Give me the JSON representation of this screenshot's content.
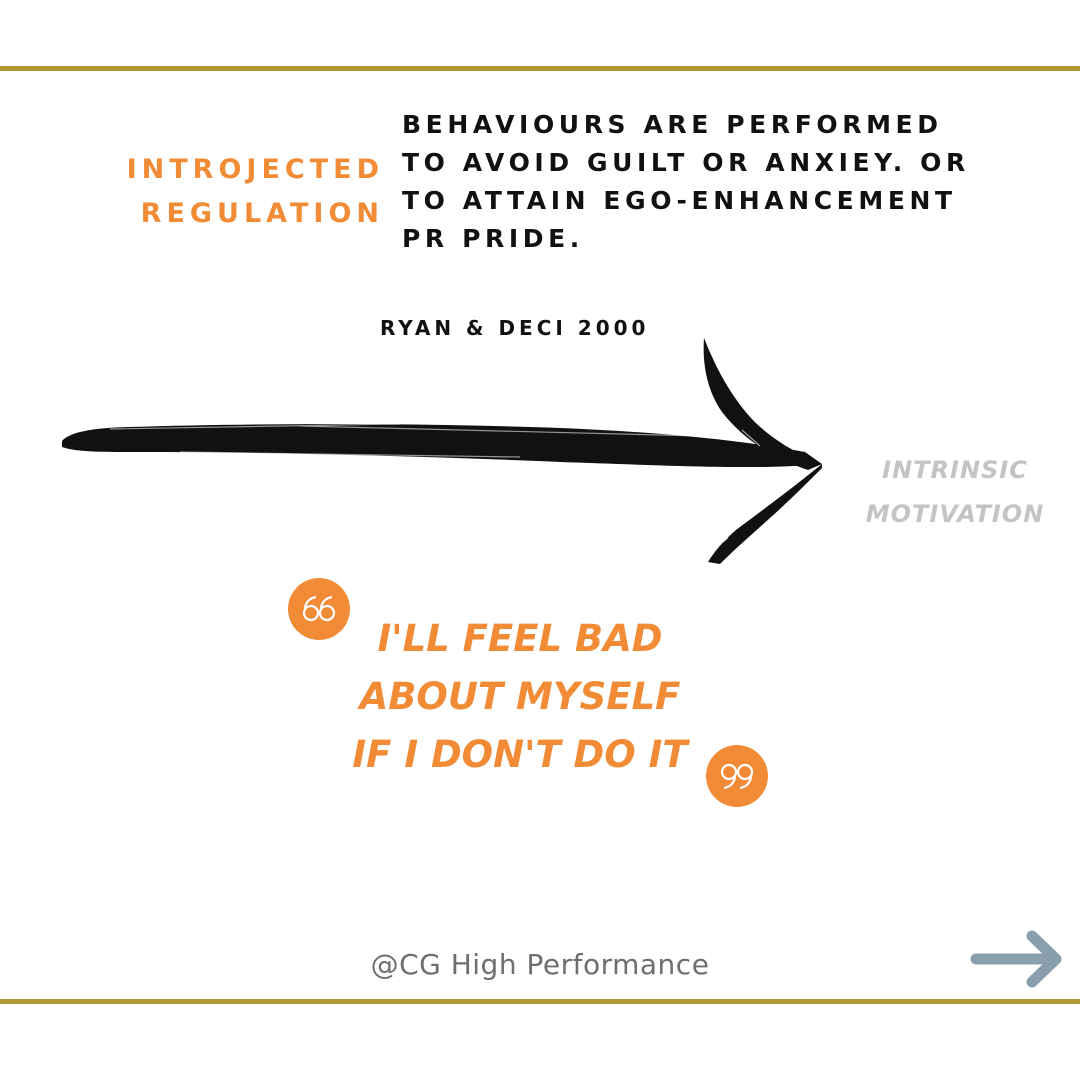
{
  "term": {
    "lines": [
      "INTROJECTED",
      "REGULATION"
    ]
  },
  "definition": {
    "lines": [
      "BEHAVIOURS ARE PERFORMED",
      "TO AVOID GUILT OR ANXIEY. OR",
      "TO ATTAIN EGO-ENHANCEMENT",
      "PR PRIDE."
    ]
  },
  "citation": "RYAN & DECI 2000",
  "endpoint": {
    "lines": [
      "INTRINSIC",
      "MOTIVATION"
    ]
  },
  "quote": {
    "lines": [
      "I'LL FEEL BAD",
      "ABOUT MYSELF",
      "IF I DON'T DO IT"
    ]
  },
  "footer": {
    "handle": "@CG High Performance"
  },
  "icons": {
    "open_quote": "open-quote-icon",
    "close_quote": "close-quote-icon",
    "next": "right-arrow-icon"
  },
  "colors": {
    "accent": "#f28b36",
    "rule": "#b09a35",
    "text": "#111111",
    "muted": "#c4c4c4",
    "arrow_button": "#8a9fae"
  }
}
